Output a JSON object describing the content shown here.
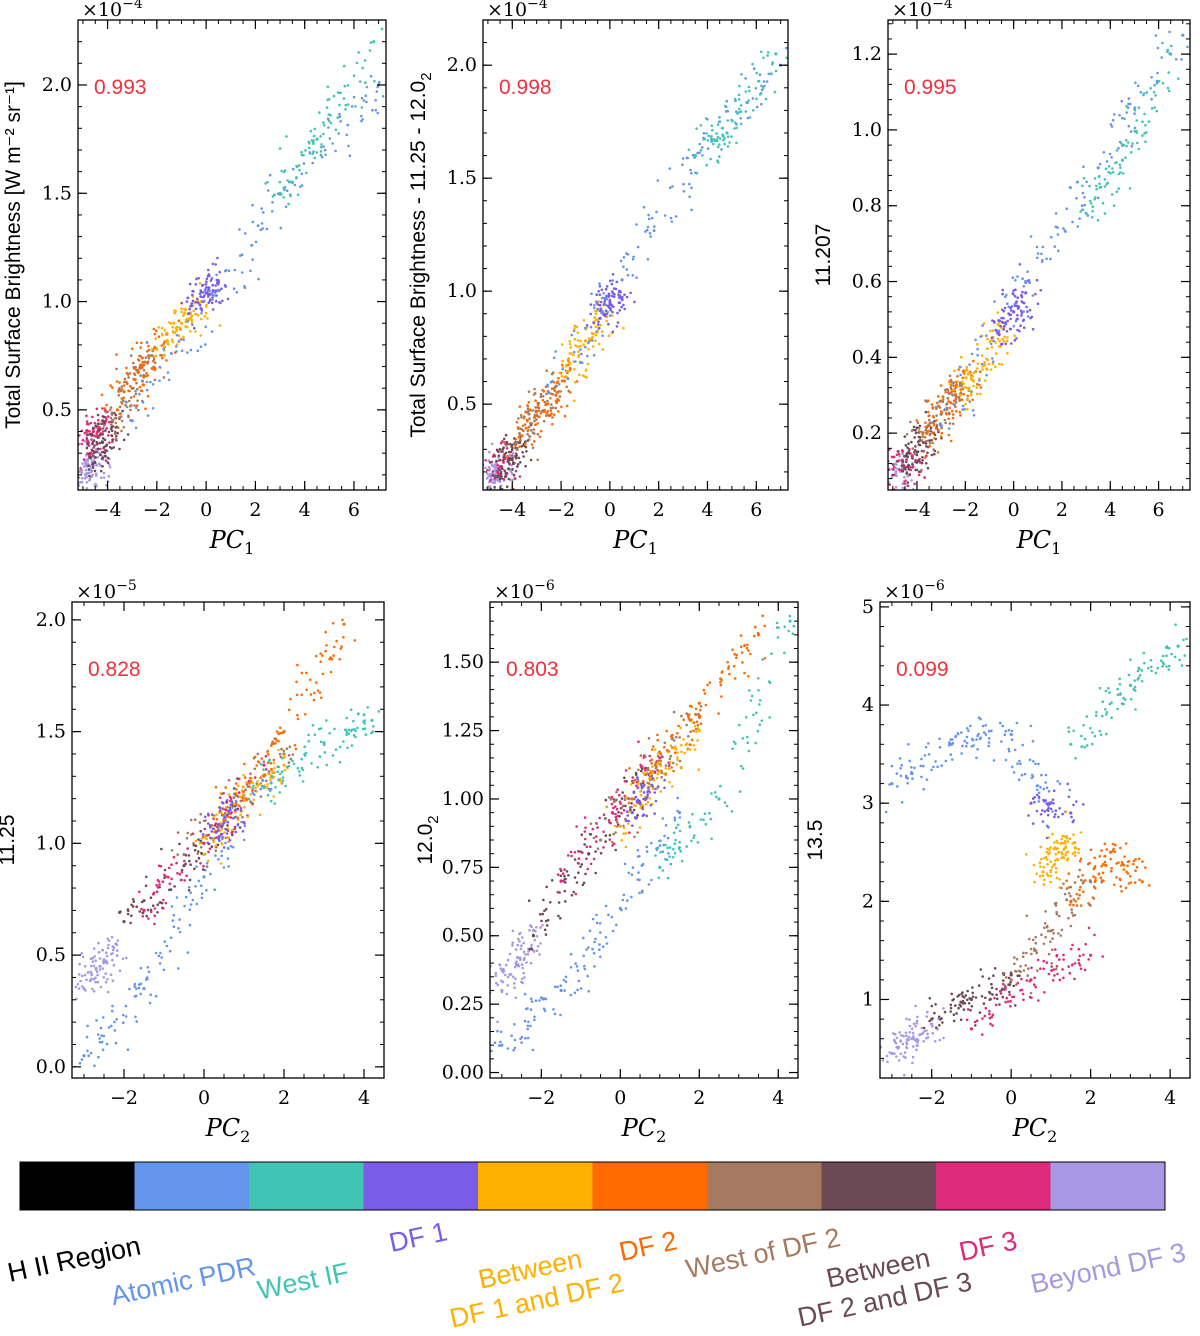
{
  "figure": {
    "colorbar": {
      "swatches": [
        "#000000",
        "#6495ED",
        "#40C4B4",
        "#7B5CE8",
        "#FFB000",
        "#FF6A00",
        "#A57A60",
        "#6C4A55",
        "#DD2A7B",
        "#A898E3"
      ],
      "labels": [
        {
          "lines": [
            "H II Region"
          ],
          "color": "#000000"
        },
        {
          "lines": [
            "Atomic PDR"
          ],
          "color": "#6495ED"
        },
        {
          "lines": [
            "West IF"
          ],
          "color": "#40C4B4"
        },
        {
          "lines": [
            "DF 1"
          ],
          "color": "#7B5CE8"
        },
        {
          "lines": [
            "Between",
            "DF 1 and DF 2"
          ],
          "color": "#FFB000"
        },
        {
          "lines": [
            "DF 2"
          ],
          "color": "#FF6A00"
        },
        {
          "lines": [
            "West of DF 2"
          ],
          "color": "#A57A60"
        },
        {
          "lines": [
            "Between",
            "DF 2 and DF 3"
          ],
          "color": "#6C4A55"
        },
        {
          "lines": [
            "DF 3"
          ],
          "color": "#DD2A7B"
        },
        {
          "lines": [
            "Beyond DF 3"
          ],
          "color": "#A898E3"
        }
      ]
    }
  },
  "chart_data": [
    {
      "type": "scatter",
      "xlabel": "PC",
      "xlabel_sub": "1",
      "ylabel": "Total Surface Brightness [W m⁻² sr⁻¹]",
      "scale_label": "×10",
      "scale_exp": "−4",
      "correlation": "0.993",
      "xlim": [
        -5.2,
        7.3
      ],
      "ylim": [
        0.13,
        2.3
      ],
      "xticks": [
        -4,
        -2,
        0,
        2,
        4,
        6
      ],
      "xtick_labels": [
        "−4",
        "−2",
        "0",
        "2",
        "4",
        "6"
      ],
      "yticks": [
        0.5,
        1.0,
        1.5,
        2.0
      ],
      "ytick_labels": [
        "0.5",
        "1.0",
        "1.5",
        "2.0"
      ],
      "series": [
        {
          "name": "Beyond DF 3",
          "color": "#A898E3",
          "x": [
            -4.9,
            -4.7,
            -4.5
          ],
          "y": [
            0.2,
            0.24,
            0.28
          ]
        },
        {
          "name": "DF 3",
          "color": "#DD2A7B",
          "x": [
            -4.7,
            -4.4,
            -4.2
          ],
          "y": [
            0.3,
            0.4,
            0.45
          ]
        },
        {
          "name": "Between DF 2 and DF 3",
          "color": "#6C4A55",
          "x": [
            -4.6,
            -4.2,
            -3.8
          ],
          "y": [
            0.25,
            0.35,
            0.45
          ]
        },
        {
          "name": "West of DF 2",
          "color": "#A57A60",
          "x": [
            -3.8,
            -3.0,
            -2.2
          ],
          "y": [
            0.45,
            0.6,
            0.75
          ]
        },
        {
          "name": "DF 2",
          "color": "#FF6A00",
          "x": [
            -3.6,
            -2.6,
            -1.6
          ],
          "y": [
            0.5,
            0.7,
            0.85
          ]
        },
        {
          "name": "Between DF 1 and DF 2",
          "color": "#FFB000",
          "x": [
            -2.0,
            -1.0,
            -0.2
          ],
          "y": [
            0.78,
            0.9,
            1.0
          ]
        },
        {
          "name": "DF 1",
          "color": "#7B5CE8",
          "x": [
            -0.6,
            0.0,
            0.5
          ],
          "y": [
            0.98,
            1.04,
            1.09
          ]
        },
        {
          "name": "Atomic PDR",
          "color": "#6495ED",
          "x": [
            -3.0,
            0.5,
            3.5,
            7.0
          ],
          "y": [
            0.45,
            1.05,
            1.55,
            2.0
          ]
        },
        {
          "name": "West IF",
          "color": "#40C4B4",
          "x": [
            3.0,
            4.5,
            6.8
          ],
          "y": [
            1.5,
            1.75,
            2.2
          ]
        }
      ]
    },
    {
      "type": "scatter",
      "xlabel": "PC",
      "xlabel_sub": "1",
      "ylabel": "Total Surface Brightness - 11.25 - 12.0",
      "ylabel_sub": "2",
      "scale_label": "×10",
      "scale_exp": "−4",
      "correlation": "0.998",
      "xlim": [
        -5.2,
        7.3
      ],
      "ylim": [
        0.12,
        2.2
      ],
      "xticks": [
        -4,
        -2,
        0,
        2,
        4,
        6
      ],
      "xtick_labels": [
        "−4",
        "−2",
        "0",
        "2",
        "4",
        "6"
      ],
      "yticks": [
        0.5,
        1.0,
        1.5,
        2.0
      ],
      "ytick_labels": [
        "0.5",
        "1.0",
        "1.5",
        "2.0"
      ],
      "series": [
        {
          "name": "Beyond DF 3",
          "color": "#A898E3",
          "x": [
            -4.9,
            -4.7,
            -4.5
          ],
          "y": [
            0.16,
            0.19,
            0.22
          ]
        },
        {
          "name": "DF 3",
          "color": "#DD2A7B",
          "x": [
            -4.6,
            -4.3
          ],
          "y": [
            0.2,
            0.26
          ]
        },
        {
          "name": "Between DF 2 and DF 3",
          "color": "#6C4A55",
          "x": [
            -4.6,
            -4.1,
            -3.7
          ],
          "y": [
            0.18,
            0.26,
            0.33
          ]
        },
        {
          "name": "West of DF 2",
          "color": "#A57A60",
          "x": [
            -3.8,
            -3.0,
            -2.2
          ],
          "y": [
            0.33,
            0.45,
            0.58
          ]
        },
        {
          "name": "DF 2",
          "color": "#FF6A00",
          "x": [
            -3.6,
            -2.6,
            -1.8
          ],
          "y": [
            0.36,
            0.5,
            0.62
          ]
        },
        {
          "name": "Between DF 1 and DF 2",
          "color": "#FFB000",
          "x": [
            -1.8,
            -1.0,
            -0.2
          ],
          "y": [
            0.62,
            0.78,
            0.9
          ]
        },
        {
          "name": "DF 1",
          "color": "#7B5CE8",
          "x": [
            -0.4,
            0.0,
            0.4
          ],
          "y": [
            0.88,
            0.95,
            1.0
          ]
        },
        {
          "name": "Atomic PDR",
          "color": "#6495ED",
          "x": [
            -2.5,
            0.5,
            3.5,
            7.0
          ],
          "y": [
            0.55,
            1.05,
            1.6,
            2.0
          ]
        },
        {
          "name": "West IF",
          "color": "#40C4B4",
          "x": [
            3.5,
            4.8,
            6.8
          ],
          "y": [
            1.6,
            1.7,
            2.05
          ]
        }
      ]
    },
    {
      "type": "scatter",
      "xlabel": "PC",
      "xlabel_sub": "1",
      "ylabel": "11.207",
      "scale_label": "×10",
      "scale_exp": "−4",
      "correlation": "0.995",
      "xlim": [
        -5.2,
        7.3
      ],
      "ylim": [
        0.05,
        1.29
      ],
      "xticks": [
        -4,
        -2,
        0,
        2,
        4,
        6
      ],
      "xtick_labels": [
        "−4",
        "−2",
        "0",
        "2",
        "4",
        "6"
      ],
      "yticks": [
        0.2,
        0.4,
        0.6,
        0.8,
        1.0,
        1.2
      ],
      "ytick_labels": [
        "0.2",
        "0.4",
        "0.6",
        "0.8",
        "1.0",
        "1.2"
      ],
      "series": [
        {
          "name": "Beyond DF 3",
          "color": "#A898E3",
          "x": [
            -4.9,
            -4.6
          ],
          "y": [
            0.09,
            0.12
          ]
        },
        {
          "name": "DF 3",
          "color": "#DD2A7B",
          "x": [
            -4.6,
            -4.2
          ],
          "y": [
            0.1,
            0.14
          ]
        },
        {
          "name": "Between DF 2 and DF 3",
          "color": "#6C4A55",
          "x": [
            -4.6,
            -4.0,
            -3.6
          ],
          "y": [
            0.1,
            0.15,
            0.2
          ]
        },
        {
          "name": "West of DF 2",
          "color": "#A57A60",
          "x": [
            -3.8,
            -3.0,
            -2.2
          ],
          "y": [
            0.18,
            0.25,
            0.33
          ]
        },
        {
          "name": "DF 2",
          "color": "#FF6A00",
          "x": [
            -3.6,
            -2.6,
            -1.8
          ],
          "y": [
            0.2,
            0.28,
            0.36
          ]
        },
        {
          "name": "Between DF 1 and DF 2",
          "color": "#FFB000",
          "x": [
            -2.2,
            -1.2,
            -0.4
          ],
          "y": [
            0.3,
            0.38,
            0.48
          ]
        },
        {
          "name": "DF 1",
          "color": "#7B5CE8",
          "x": [
            -0.6,
            0.0,
            0.5
          ],
          "y": [
            0.46,
            0.52,
            0.57
          ]
        },
        {
          "name": "Atomic PDR",
          "color": "#6495ED",
          "x": [
            -3.0,
            0.5,
            3.5,
            7.0
          ],
          "y": [
            0.22,
            0.6,
            0.9,
            1.25
          ]
        },
        {
          "name": "West IF",
          "color": "#40C4B4",
          "x": [
            3.0,
            4.5,
            6.5
          ],
          "y": [
            0.78,
            0.92,
            1.2
          ]
        }
      ]
    },
    {
      "type": "scatter",
      "xlabel": "PC",
      "xlabel_sub": "2",
      "ylabel": "11.25",
      "scale_label": "×10",
      "scale_exp": "−5",
      "correlation": "0.828",
      "xlim": [
        -3.3,
        4.5
      ],
      "ylim": [
        -0.05,
        2.08
      ],
      "xticks": [
        -2,
        0,
        2,
        4
      ],
      "xtick_labels": [
        "−2",
        "0",
        "2",
        "4"
      ],
      "yticks": [
        0.0,
        0.5,
        1.0,
        1.5,
        2.0
      ],
      "ytick_labels": [
        "0.0",
        "0.5",
        "1.0",
        "1.5",
        "2.0"
      ],
      "series": [
        {
          "name": "Beyond DF 3",
          "color": "#A898E3",
          "x": [
            -3.0,
            -2.6,
            -2.2
          ],
          "y": [
            0.35,
            0.45,
            0.55
          ]
        },
        {
          "name": "Atomic PDR",
          "color": "#6495ED",
          "x": [
            -3.0,
            -1.5,
            0.0,
            1.5
          ],
          "y": [
            0.05,
            0.35,
            0.85,
            1.3
          ]
        },
        {
          "name": "Between DF 2 and DF 3",
          "color": "#6C4A55",
          "x": [
            -2.0,
            -0.5,
            1.0
          ],
          "y": [
            0.65,
            0.9,
            1.2
          ]
        },
        {
          "name": "DF 3",
          "color": "#DD2A7B",
          "x": [
            -1.5,
            0.0,
            1.5
          ],
          "y": [
            0.7,
            1.0,
            1.35
          ]
        },
        {
          "name": "West of DF 2",
          "color": "#A57A60",
          "x": [
            -0.5,
            1.0,
            2.0
          ],
          "y": [
            0.95,
            1.2,
            1.4
          ]
        },
        {
          "name": "Between DF 1 and DF 2",
          "color": "#FFB000",
          "x": [
            0.0,
            1.0,
            2.0
          ],
          "y": [
            0.95,
            1.2,
            1.35
          ]
        },
        {
          "name": "DF 2",
          "color": "#FF6A00",
          "x": [
            0.5,
            2.0,
            3.5
          ],
          "y": [
            1.1,
            1.5,
            1.98
          ]
        },
        {
          "name": "DF 1",
          "color": "#7B5CE8",
          "x": [
            0.3,
            0.8
          ],
          "y": [
            1.05,
            1.15
          ]
        },
        {
          "name": "West IF",
          "color": "#40C4B4",
          "x": [
            1.5,
            3.0,
            4.2
          ],
          "y": [
            1.25,
            1.45,
            1.55
          ]
        }
      ]
    },
    {
      "type": "scatter",
      "xlabel": "PC",
      "xlabel_sub": "2",
      "ylabel": "12.0",
      "ylabel_sub": "2",
      "scale_label": "×10",
      "scale_exp": "−6",
      "correlation": "0.803",
      "xlim": [
        -3.3,
        4.5
      ],
      "ylim": [
        -0.02,
        1.72
      ],
      "xticks": [
        -2,
        0,
        2,
        4
      ],
      "xtick_labels": [
        "−2",
        "0",
        "2",
        "4"
      ],
      "yticks": [
        0.0,
        0.25,
        0.5,
        0.75,
        1.0,
        1.25,
        1.5
      ],
      "ytick_labels": [
        "0.00",
        "0.25",
        "0.50",
        "0.75",
        "1.00",
        "1.25",
        "1.50"
      ],
      "series": [
        {
          "name": "Beyond DF 3",
          "color": "#A898E3",
          "x": [
            -3.0,
            -2.6,
            -2.2
          ],
          "y": [
            0.3,
            0.42,
            0.52
          ]
        },
        {
          "name": "Atomic PDR",
          "color": "#6495ED",
          "x": [
            -3.0,
            -1.5,
            0.0,
            1.5
          ],
          "y": [
            0.1,
            0.3,
            0.6,
            0.95
          ]
        },
        {
          "name": "Between DF 2 and DF 3",
          "color": "#6C4A55",
          "x": [
            -2.2,
            -0.8,
            0.8
          ],
          "y": [
            0.5,
            0.8,
            1.1
          ]
        },
        {
          "name": "DF 3",
          "color": "#DD2A7B",
          "x": [
            -1.5,
            -0.2,
            1.0
          ],
          "y": [
            0.7,
            0.95,
            1.15
          ]
        },
        {
          "name": "West of DF 2",
          "color": "#A57A60",
          "x": [
            -0.5,
            0.8,
            2.0
          ],
          "y": [
            0.85,
            1.1,
            1.3
          ]
        },
        {
          "name": "Between DF 1 and DF 2",
          "color": "#FFB000",
          "x": [
            0.0,
            1.0,
            2.0
          ],
          "y": [
            0.9,
            1.1,
            1.25
          ]
        },
        {
          "name": "DF 2",
          "color": "#FF6A00",
          "x": [
            0.3,
            2.0,
            3.5
          ],
          "y": [
            1.0,
            1.35,
            1.6
          ]
        },
        {
          "name": "DF 1",
          "color": "#7B5CE8",
          "x": [
            0.3,
            0.8
          ],
          "y": [
            0.95,
            1.05
          ]
        },
        {
          "name": "West IF",
          "color": "#40C4B4",
          "x": [
            1.0,
            2.5,
            4.3
          ],
          "y": [
            0.75,
            1.0,
            1.65
          ]
        }
      ]
    },
    {
      "type": "scatter",
      "xlabel": "PC",
      "xlabel_sub": "2",
      "ylabel": "13.5",
      "scale_label": "×10",
      "scale_exp": "−6",
      "correlation": "0.099",
      "xlim": [
        -3.3,
        4.5
      ],
      "ylim": [
        0.2,
        5.05
      ],
      "xticks": [
        -2,
        0,
        2,
        4
      ],
      "xtick_labels": [
        "−2",
        "0",
        "2",
        "4"
      ],
      "yticks": [
        1,
        2,
        3,
        4,
        5
      ],
      "ytick_labels": [
        "1",
        "2",
        "3",
        "4",
        "5"
      ],
      "series": [
        {
          "name": "Beyond DF 3",
          "color": "#A898E3",
          "x": [
            -3.0,
            -2.5,
            -2.0
          ],
          "y": [
            0.45,
            0.6,
            0.75
          ]
        },
        {
          "name": "Between DF 2 and DF 3",
          "color": "#6C4A55",
          "x": [
            -2.0,
            -1.0,
            0.0
          ],
          "y": [
            0.8,
            1.0,
            1.25
          ]
        },
        {
          "name": "DF 3",
          "color": "#DD2A7B",
          "x": [
            -1.0,
            0.5,
            2.0
          ],
          "y": [
            0.7,
            1.2,
            1.45
          ]
        },
        {
          "name": "West of DF 2",
          "color": "#A57A60",
          "x": [
            0.0,
            1.0,
            2.0
          ],
          "y": [
            1.2,
            1.7,
            2.2
          ]
        },
        {
          "name": "Atomic PDR",
          "color": "#6495ED",
          "x": [
            -3.0,
            -1.5,
            0.0,
            1.0
          ],
          "y": [
            3.2,
            3.6,
            3.7,
            3.0
          ]
        },
        {
          "name": "DF 1",
          "color": "#7B5CE8",
          "x": [
            0.5,
            1.5
          ],
          "y": [
            3.0,
            2.9
          ]
        },
        {
          "name": "Between DF 1 and DF 2",
          "color": "#FFB000",
          "x": [
            0.8,
            1.2,
            1.6
          ],
          "y": [
            2.3,
            2.5,
            2.6
          ]
        },
        {
          "name": "DF 2",
          "color": "#FF6A00",
          "x": [
            1.5,
            2.5,
            3.3
          ],
          "y": [
            2.0,
            2.5,
            2.2
          ]
        },
        {
          "name": "West IF",
          "color": "#40C4B4",
          "x": [
            1.5,
            3.0,
            4.2
          ],
          "y": [
            3.6,
            4.2,
            4.6
          ]
        }
      ]
    }
  ]
}
